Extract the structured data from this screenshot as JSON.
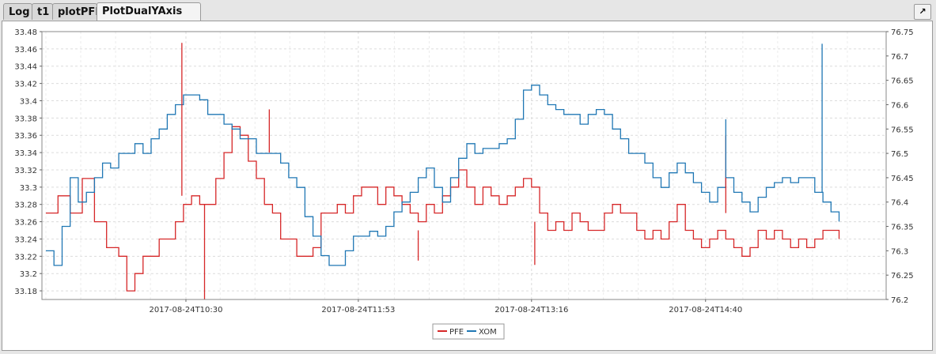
{
  "tabs": [
    {
      "label": "Log",
      "active": false
    },
    {
      "label": "t1",
      "active": false
    },
    {
      "label": "plotPFE",
      "active": false
    },
    {
      "label": "PlotDualYAxis",
      "active": true
    }
  ],
  "tab_controls": {
    "popout": "↗",
    "close": "✕"
  },
  "window_controls": {
    "popout": "↗"
  },
  "chart_data": {
    "type": "line",
    "title": "",
    "x_tick_labels": [
      "2017-08-24T10:30",
      "2017-08-24T11:53",
      "2017-08-24T13:16",
      "2017-08-24T14:40"
    ],
    "y_left": {
      "ylim": [
        33.17,
        33.48
      ],
      "ticks": [
        33.18,
        33.2,
        33.22,
        33.24,
        33.26,
        33.28,
        33.3,
        33.32,
        33.34,
        33.36,
        33.38,
        33.4,
        33.42,
        33.44,
        33.46,
        33.48
      ]
    },
    "y_right": {
      "ylim": [
        76.2,
        76.75
      ],
      "ticks": [
        76.2,
        76.25,
        76.3,
        76.35,
        76.4,
        76.45,
        76.5,
        76.55,
        76.6,
        76.65,
        76.7,
        76.75
      ]
    },
    "grid": true,
    "legend_position": "bottom-center",
    "series": [
      {
        "name": "PFE",
        "axis": "left",
        "color": "#d62728",
        "points": [
          [
            0,
            33.27
          ],
          [
            0.015,
            33.29
          ],
          [
            0.03,
            33.27
          ],
          [
            0.045,
            33.31
          ],
          [
            0.06,
            33.26
          ],
          [
            0.075,
            33.23
          ],
          [
            0.09,
            33.22
          ],
          [
            0.1,
            33.18
          ],
          [
            0.11,
            33.2
          ],
          [
            0.12,
            33.22
          ],
          [
            0.14,
            33.24
          ],
          [
            0.16,
            33.26
          ],
          [
            0.17,
            33.28
          ],
          [
            0.18,
            33.29
          ],
          [
            0.19,
            33.28
          ],
          [
            0.2,
            33.28
          ],
          [
            0.21,
            33.31
          ],
          [
            0.22,
            33.34
          ],
          [
            0.23,
            33.37
          ],
          [
            0.24,
            33.36
          ],
          [
            0.25,
            33.33
          ],
          [
            0.26,
            33.31
          ],
          [
            0.27,
            33.28
          ],
          [
            0.28,
            33.27
          ],
          [
            0.29,
            33.24
          ],
          [
            0.3,
            33.24
          ],
          [
            0.31,
            33.22
          ],
          [
            0.32,
            33.22
          ],
          [
            0.33,
            33.23
          ],
          [
            0.34,
            33.27
          ],
          [
            0.35,
            33.27
          ],
          [
            0.36,
            33.28
          ],
          [
            0.37,
            33.27
          ],
          [
            0.38,
            33.29
          ],
          [
            0.39,
            33.3
          ],
          [
            0.4,
            33.3
          ],
          [
            0.41,
            33.28
          ],
          [
            0.42,
            33.3
          ],
          [
            0.43,
            33.29
          ],
          [
            0.44,
            33.28
          ],
          [
            0.45,
            33.27
          ],
          [
            0.46,
            33.26
          ],
          [
            0.47,
            33.28
          ],
          [
            0.48,
            33.27
          ],
          [
            0.49,
            33.29
          ],
          [
            0.5,
            33.3
          ],
          [
            0.51,
            33.32
          ],
          [
            0.52,
            33.3
          ],
          [
            0.53,
            33.28
          ],
          [
            0.54,
            33.3
          ],
          [
            0.55,
            33.29
          ],
          [
            0.56,
            33.28
          ],
          [
            0.57,
            33.29
          ],
          [
            0.58,
            33.3
          ],
          [
            0.59,
            33.31
          ],
          [
            0.6,
            33.3
          ],
          [
            0.61,
            33.27
          ],
          [
            0.62,
            33.25
          ],
          [
            0.63,
            33.26
          ],
          [
            0.64,
            33.25
          ],
          [
            0.65,
            33.27
          ],
          [
            0.66,
            33.26
          ],
          [
            0.67,
            33.25
          ],
          [
            0.68,
            33.25
          ],
          [
            0.69,
            33.27
          ],
          [
            0.7,
            33.28
          ],
          [
            0.71,
            33.27
          ],
          [
            0.72,
            33.27
          ],
          [
            0.73,
            33.25
          ],
          [
            0.74,
            33.24
          ],
          [
            0.75,
            33.25
          ],
          [
            0.76,
            33.24
          ],
          [
            0.77,
            33.26
          ],
          [
            0.78,
            33.28
          ],
          [
            0.79,
            33.25
          ],
          [
            0.8,
            33.24
          ],
          [
            0.81,
            33.23
          ],
          [
            0.82,
            33.24
          ],
          [
            0.83,
            33.25
          ],
          [
            0.84,
            33.24
          ],
          [
            0.85,
            33.23
          ],
          [
            0.86,
            33.22
          ],
          [
            0.87,
            33.23
          ],
          [
            0.88,
            33.25
          ],
          [
            0.89,
            33.24
          ],
          [
            0.9,
            33.25
          ],
          [
            0.91,
            33.24
          ],
          [
            0.92,
            33.23
          ],
          [
            0.93,
            33.24
          ],
          [
            0.94,
            33.23
          ],
          [
            0.95,
            33.24
          ],
          [
            0.96,
            33.25
          ],
          [
            0.97,
            33.25
          ],
          [
            0.98,
            33.24
          ]
        ]
      },
      {
        "name": "XOM",
        "axis": "right",
        "color": "#1f77b4",
        "points": [
          [
            0,
            76.3
          ],
          [
            0.01,
            76.27
          ],
          [
            0.02,
            76.35
          ],
          [
            0.03,
            76.45
          ],
          [
            0.04,
            76.4
          ],
          [
            0.05,
            76.42
          ],
          [
            0.06,
            76.45
          ],
          [
            0.07,
            76.48
          ],
          [
            0.08,
            76.47
          ],
          [
            0.09,
            76.5
          ],
          [
            0.1,
            76.5
          ],
          [
            0.11,
            76.52
          ],
          [
            0.12,
            76.5
          ],
          [
            0.13,
            76.53
          ],
          [
            0.14,
            76.55
          ],
          [
            0.15,
            76.58
          ],
          [
            0.16,
            76.6
          ],
          [
            0.17,
            76.62
          ],
          [
            0.18,
            76.62
          ],
          [
            0.19,
            76.61
          ],
          [
            0.2,
            76.58
          ],
          [
            0.21,
            76.58
          ],
          [
            0.22,
            76.56
          ],
          [
            0.23,
            76.55
          ],
          [
            0.24,
            76.53
          ],
          [
            0.25,
            76.53
          ],
          [
            0.26,
            76.5
          ],
          [
            0.27,
            76.5
          ],
          [
            0.28,
            76.5
          ],
          [
            0.29,
            76.48
          ],
          [
            0.3,
            76.45
          ],
          [
            0.31,
            76.43
          ],
          [
            0.32,
            76.37
          ],
          [
            0.33,
            76.33
          ],
          [
            0.34,
            76.29
          ],
          [
            0.35,
            76.27
          ],
          [
            0.36,
            76.27
          ],
          [
            0.37,
            76.3
          ],
          [
            0.38,
            76.33
          ],
          [
            0.39,
            76.33
          ],
          [
            0.4,
            76.34
          ],
          [
            0.41,
            76.33
          ],
          [
            0.42,
            76.35
          ],
          [
            0.43,
            76.38
          ],
          [
            0.44,
            76.4
          ],
          [
            0.45,
            76.42
          ],
          [
            0.46,
            76.45
          ],
          [
            0.47,
            76.47
          ],
          [
            0.48,
            76.43
          ],
          [
            0.49,
            76.4
          ],
          [
            0.5,
            76.45
          ],
          [
            0.51,
            76.49
          ],
          [
            0.52,
            76.52
          ],
          [
            0.53,
            76.5
          ],
          [
            0.54,
            76.51
          ],
          [
            0.55,
            76.51
          ],
          [
            0.56,
            76.52
          ],
          [
            0.57,
            76.53
          ],
          [
            0.58,
            76.57
          ],
          [
            0.59,
            76.63
          ],
          [
            0.6,
            76.64
          ],
          [
            0.61,
            76.62
          ],
          [
            0.62,
            76.6
          ],
          [
            0.63,
            76.59
          ],
          [
            0.64,
            76.58
          ],
          [
            0.65,
            76.58
          ],
          [
            0.66,
            76.56
          ],
          [
            0.67,
            76.58
          ],
          [
            0.68,
            76.59
          ],
          [
            0.69,
            76.58
          ],
          [
            0.7,
            76.55
          ],
          [
            0.71,
            76.53
          ],
          [
            0.72,
            76.5
          ],
          [
            0.73,
            76.5
          ],
          [
            0.74,
            76.48
          ],
          [
            0.75,
            76.45
          ],
          [
            0.76,
            76.43
          ],
          [
            0.77,
            76.46
          ],
          [
            0.78,
            76.48
          ],
          [
            0.79,
            76.46
          ],
          [
            0.8,
            76.44
          ],
          [
            0.81,
            76.42
          ],
          [
            0.82,
            76.4
          ],
          [
            0.83,
            76.43
          ],
          [
            0.84,
            76.45
          ],
          [
            0.85,
            76.42
          ],
          [
            0.86,
            76.4
          ],
          [
            0.87,
            76.38
          ],
          [
            0.88,
            76.41
          ],
          [
            0.89,
            76.43
          ],
          [
            0.9,
            76.44
          ],
          [
            0.91,
            76.45
          ],
          [
            0.92,
            76.44
          ],
          [
            0.93,
            76.45
          ],
          [
            0.94,
            76.45
          ],
          [
            0.95,
            76.42
          ],
          [
            0.96,
            76.4
          ],
          [
            0.97,
            76.38
          ],
          [
            0.98,
            76.36
          ]
        ]
      }
    ],
    "spikes": [
      {
        "series": "PFE",
        "x": 0.168,
        "from": 33.29,
        "to": 33.467
      },
      {
        "series": "PFE",
        "x": 0.196,
        "from": 33.28,
        "to": 33.17
      },
      {
        "series": "PFE",
        "x": 0.276,
        "from": 33.34,
        "to": 33.39
      },
      {
        "series": "PFE",
        "x": 0.46,
        "from": 33.25,
        "to": 33.215
      },
      {
        "series": "PFE",
        "x": 0.604,
        "from": 33.26,
        "to": 33.21
      },
      {
        "series": "PFE",
        "x": 0.84,
        "from": 33.27,
        "to": 33.36
      },
      {
        "series": "XOM",
        "x": 0.84,
        "from": 76.45,
        "to": 76.57
      },
      {
        "series": "XOM",
        "x": 0.959,
        "from": 76.42,
        "to": 76.725
      }
    ]
  }
}
